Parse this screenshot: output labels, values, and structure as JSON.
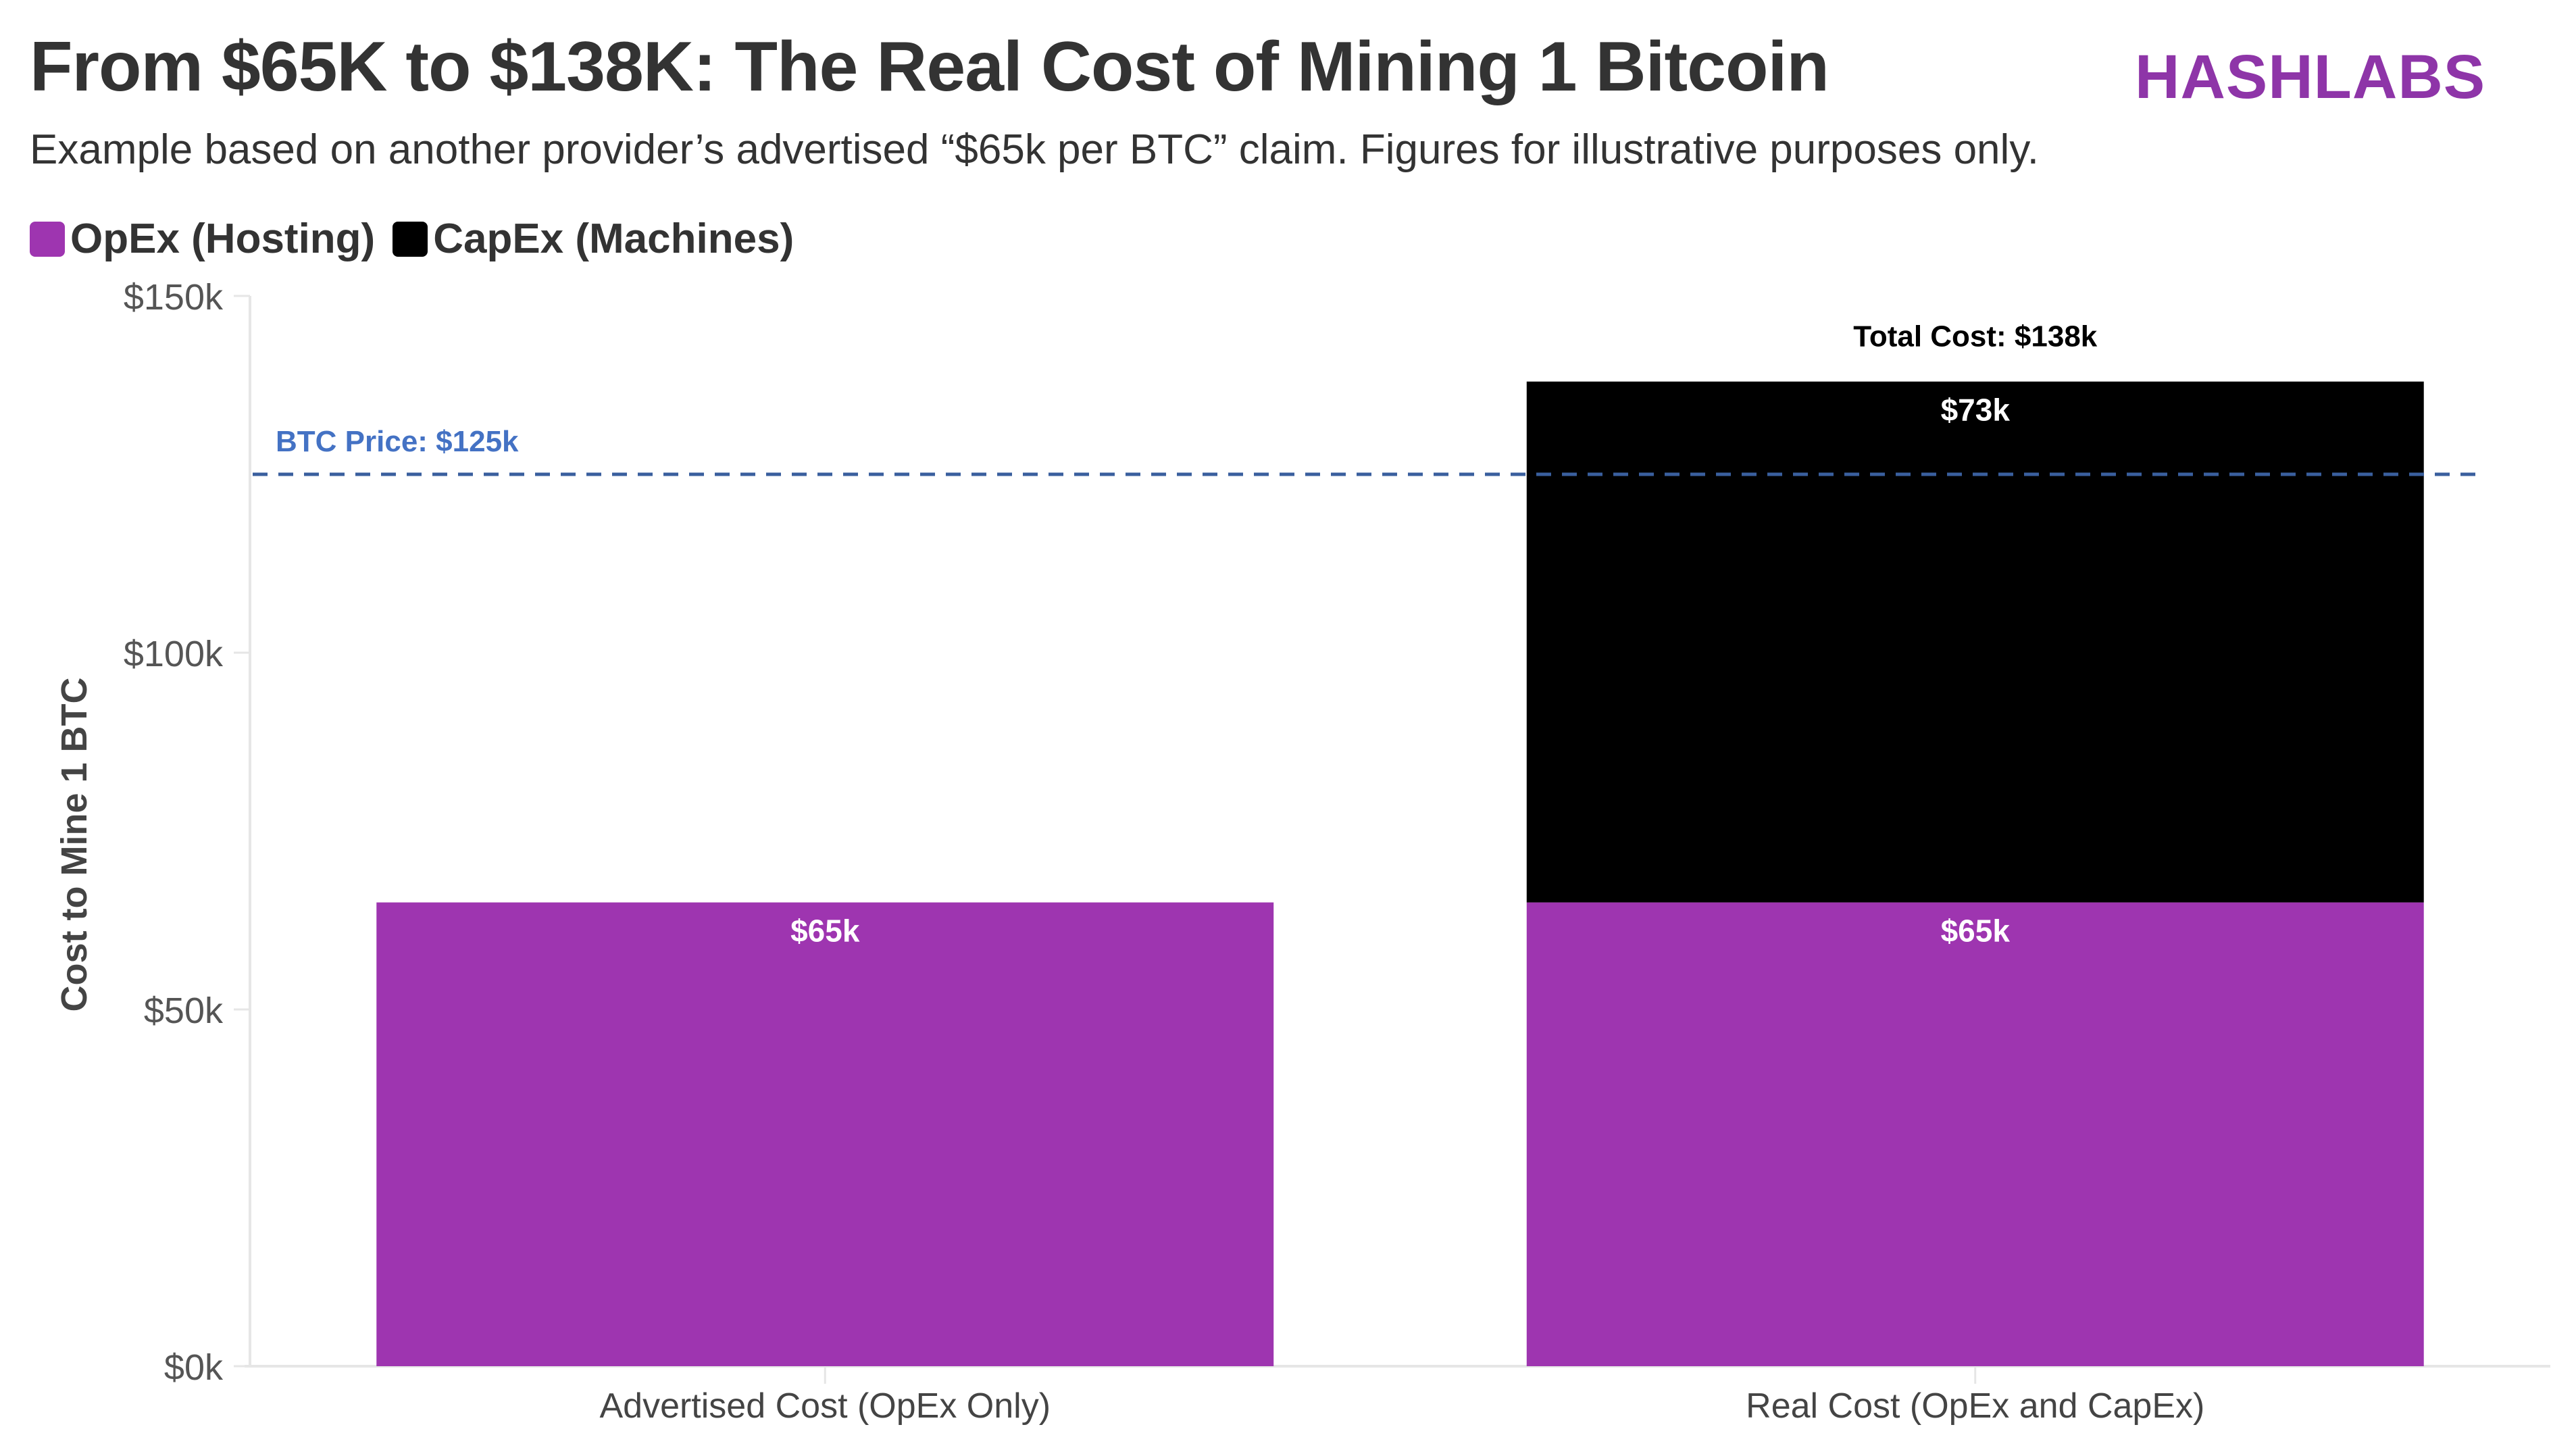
{
  "title": "From $65K to $138K: The Real Cost of Mining 1 Bitcoin",
  "subtitle": "Example based on another provider’s advertised “$65k per BTC” claim. Figures for illustrative purposes only.",
  "brand": {
    "logo_text": "HASHLABS",
    "color": "#8e35a8"
  },
  "legend": [
    {
      "label": "OpEx (Hosting)",
      "color": "#9e35b0"
    },
    {
      "label": "CapEx (Machines)",
      "color": "#000000"
    }
  ],
  "chart_data": {
    "type": "bar",
    "stacked": true,
    "title": "From $65K to $138K: The Real Cost of Mining 1 Bitcoin",
    "xlabel": "",
    "ylabel": "Cost to Mine 1 BTC",
    "ylim": [
      0,
      150000
    ],
    "yticks": [
      0,
      50000,
      100000,
      150000
    ],
    "ytick_labels": [
      "$0k",
      "$50k",
      "$100k",
      "$150k"
    ],
    "categories": [
      "Advertised Cost (OpEx Only)",
      "Real Cost (OpEx and CapEx)"
    ],
    "series": [
      {
        "name": "OpEx (Hosting)",
        "color": "#9e35b0",
        "values": [
          65000,
          65000
        ],
        "labels": [
          "$65k",
          "$65k"
        ]
      },
      {
        "name": "CapEx (Machines)",
        "color": "#000000",
        "values": [
          0,
          73000
        ],
        "labels": [
          "",
          "$73k"
        ]
      }
    ],
    "totals": [
      null,
      {
        "value": 138000,
        "label": "Total Cost: $138k"
      }
    ],
    "reference_line": {
      "value": 125000,
      "label": "BTC Price: $125k",
      "color": "#3a5f9e",
      "style": "dashed"
    },
    "grid": false,
    "legend_position": "top-left"
  }
}
